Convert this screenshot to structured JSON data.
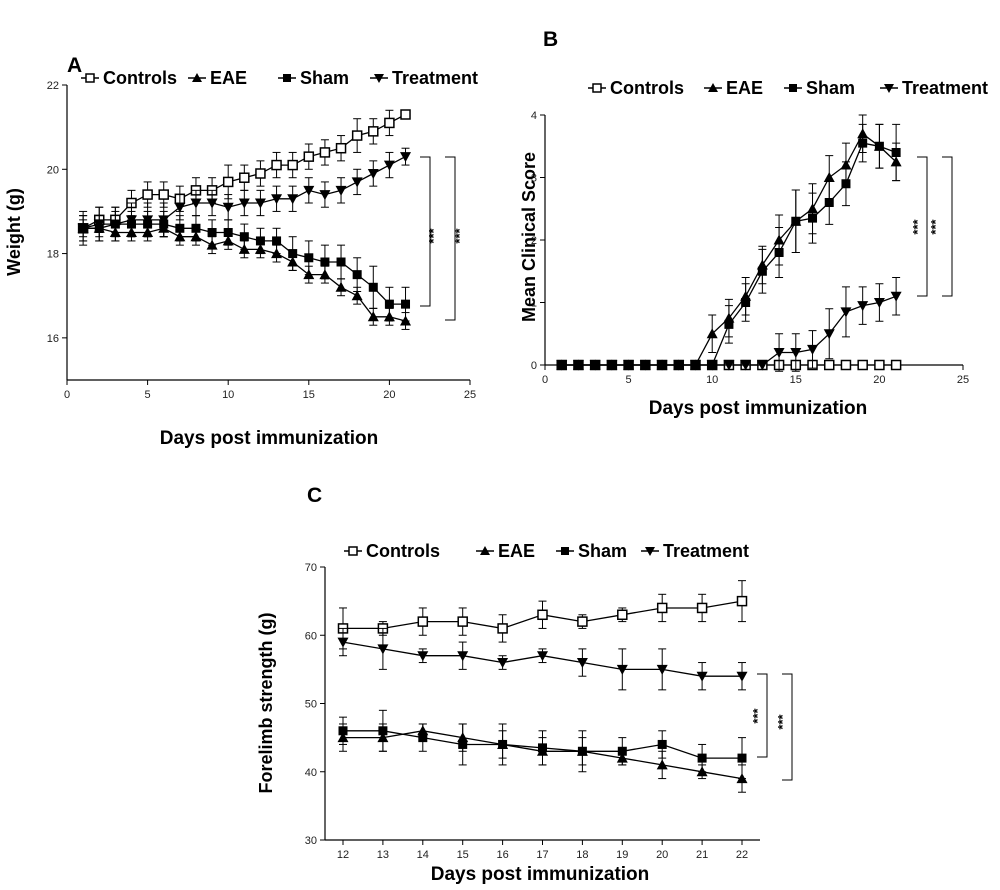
{
  "chart_data": [
    {
      "panel": "A",
      "type": "line",
      "xlabel": "Days post immunization",
      "ylabel": "Weight (g)",
      "xlim": [
        0,
        25
      ],
      "ylim": [
        15,
        22
      ],
      "xticks": [
        "0",
        "5",
        "10",
        "15",
        "20",
        "25"
      ],
      "yticks": [
        "16",
        "18",
        "20",
        "22"
      ],
      "legend_position": "top",
      "grid": false,
      "significance_label": "***",
      "x": [
        1,
        2,
        3,
        4,
        5,
        6,
        7,
        8,
        9,
        10,
        11,
        12,
        13,
        14,
        15,
        16,
        17,
        18,
        19,
        20,
        21
      ],
      "series": [
        {
          "name": "Controls",
          "marker": "open-square",
          "values": [
            18.6,
            18.8,
            18.8,
            19.2,
            19.4,
            19.4,
            19.3,
            19.5,
            19.5,
            19.7,
            19.8,
            19.9,
            20.1,
            20.1,
            20.3,
            20.4,
            20.5,
            20.8,
            20.9,
            21.1,
            21.3
          ],
          "errors": [
            0.3,
            0.3,
            0.3,
            0.3,
            0.3,
            0.3,
            0.3,
            0.3,
            0.3,
            0.4,
            0.3,
            0.3,
            0.3,
            0.3,
            0.3,
            0.3,
            0.3,
            0.4,
            0.3,
            0.3,
            0.1
          ]
        },
        {
          "name": "EAE",
          "marker": "triangle-up",
          "values": [
            18.6,
            18.6,
            18.5,
            18.5,
            18.5,
            18.6,
            18.4,
            18.4,
            18.2,
            18.3,
            18.1,
            18.1,
            18.0,
            17.8,
            17.5,
            17.5,
            17.2,
            17.0,
            16.5,
            16.5,
            16.4
          ],
          "errors": [
            0.2,
            0.2,
            0.2,
            0.2,
            0.2,
            0.2,
            0.2,
            0.2,
            0.2,
            0.2,
            0.2,
            0.2,
            0.2,
            0.2,
            0.2,
            0.2,
            0.2,
            0.2,
            0.2,
            0.2,
            0.2
          ]
        },
        {
          "name": "Sham",
          "marker": "filled-square",
          "values": [
            18.6,
            18.6,
            18.7,
            18.7,
            18.7,
            18.7,
            18.6,
            18.6,
            18.5,
            18.5,
            18.4,
            18.3,
            18.3,
            18.0,
            17.9,
            17.8,
            17.8,
            17.5,
            17.2,
            16.8,
            16.8
          ],
          "errors": [
            0.3,
            0.3,
            0.3,
            0.3,
            0.3,
            0.3,
            0.3,
            0.3,
            0.3,
            0.3,
            0.3,
            0.3,
            0.3,
            0.4,
            0.4,
            0.4,
            0.4,
            0.4,
            0.5,
            0.4,
            0.4
          ]
        },
        {
          "name": "Treatment",
          "marker": "triangle-down",
          "values": [
            18.6,
            18.7,
            18.7,
            18.8,
            18.8,
            18.8,
            19.1,
            19.2,
            19.2,
            19.1,
            19.2,
            19.2,
            19.3,
            19.3,
            19.5,
            19.4,
            19.5,
            19.7,
            19.9,
            20.1,
            20.3
          ],
          "errors": [
            0.4,
            0.4,
            0.4,
            0.4,
            0.4,
            0.4,
            0.3,
            0.3,
            0.3,
            0.3,
            0.3,
            0.3,
            0.3,
            0.3,
            0.3,
            0.3,
            0.3,
            0.3,
            0.3,
            0.3,
            0.2
          ]
        }
      ]
    },
    {
      "panel": "B",
      "type": "line",
      "xlabel": "Days post immunization",
      "ylabel": "Mean Clinical Score",
      "xlim": [
        0,
        25
      ],
      "ylim": [
        0,
        4
      ],
      "xticks": [
        "0",
        "5",
        "10",
        "15",
        "20",
        "25"
      ],
      "yticks": [
        "0",
        "1",
        "2",
        "3",
        "4"
      ],
      "legend_position": "top",
      "grid": false,
      "significance_label": "***",
      "x": [
        1,
        2,
        3,
        4,
        5,
        6,
        7,
        8,
        9,
        10,
        11,
        12,
        13,
        14,
        15,
        16,
        17,
        18,
        19,
        20,
        21
      ],
      "series": [
        {
          "name": "Controls",
          "marker": "open-square",
          "values": [
            0,
            0,
            0,
            0,
            0,
            0,
            0,
            0,
            0,
            0,
            0,
            0,
            0,
            0,
            0,
            0,
            0,
            0,
            0,
            0,
            0
          ],
          "errors": [
            0,
            0,
            0,
            0,
            0,
            0,
            0,
            0,
            0,
            0,
            0,
            0,
            0,
            0,
            0,
            0,
            0,
            0,
            0,
            0,
            0
          ]
        },
        {
          "name": "EAE",
          "marker": "triangle-up",
          "values": [
            0,
            0,
            0,
            0,
            0,
            0,
            0,
            0,
            0,
            0.5,
            0.75,
            1.1,
            1.6,
            2.0,
            2.3,
            2.5,
            3.0,
            3.2,
            3.7,
            3.5,
            3.25
          ],
          "errors": [
            0,
            0,
            0,
            0,
            0,
            0,
            0,
            0,
            0,
            0.3,
            0.3,
            0.3,
            0.3,
            0.4,
            0.5,
            0.4,
            0.35,
            0.35,
            0.3,
            0.35,
            0.3
          ]
        },
        {
          "name": "Sham",
          "marker": "filled-square",
          "values": [
            0,
            0,
            0,
            0,
            0,
            0,
            0,
            0,
            0,
            0,
            0.65,
            1.0,
            1.5,
            1.8,
            2.3,
            2.35,
            2.6,
            2.9,
            3.55,
            3.5,
            3.4
          ],
          "errors": [
            0,
            0,
            0,
            0,
            0,
            0,
            0,
            0,
            0,
            0,
            0.3,
            0.3,
            0.35,
            0.4,
            0.5,
            0.4,
            0.35,
            0.35,
            0.3,
            0.35,
            0.45
          ]
        },
        {
          "name": "Treatment",
          "marker": "triangle-down",
          "values": [
            0,
            0,
            0,
            0,
            0,
            0,
            0,
            0,
            0,
            0,
            0,
            0,
            0,
            0.2,
            0.2,
            0.25,
            0.5,
            0.85,
            0.95,
            1.0,
            1.1
          ],
          "errors": [
            0,
            0,
            0,
            0,
            0,
            0,
            0,
            0,
            0,
            0,
            0,
            0,
            0,
            0.3,
            0.3,
            0.3,
            0.4,
            0.4,
            0.3,
            0.3,
            0.3
          ]
        }
      ]
    },
    {
      "panel": "C",
      "type": "line",
      "xlabel": "Days post immunization",
      "ylabel": "Forelimb strength (g)",
      "ylim": [
        30,
        70
      ],
      "categories": [
        "12",
        "13",
        "14",
        "15",
        "16",
        "17",
        "18",
        "19",
        "20",
        "21",
        "22"
      ],
      "yticks": [
        "30",
        "40",
        "50",
        "60",
        "70"
      ],
      "legend_position": "top",
      "grid": false,
      "significance_label": "***",
      "series": [
        {
          "name": "Controls",
          "marker": "open-square",
          "values": [
            61,
            61,
            62,
            62,
            61,
            63,
            62,
            63,
            64,
            64,
            65
          ],
          "errors": [
            3,
            1,
            2,
            2,
            2,
            2,
            1,
            1,
            2,
            2,
            3
          ]
        },
        {
          "name": "EAE",
          "marker": "triangle-up",
          "values": [
            45,
            45,
            46,
            45,
            44,
            43,
            43,
            42,
            41,
            40,
            39
          ],
          "errors": [
            2,
            2,
            1,
            2,
            2,
            2,
            2,
            1,
            2,
            1,
            2
          ]
        },
        {
          "name": "Sham",
          "marker": "filled-square",
          "values": [
            46,
            46,
            45,
            44,
            44,
            43.5,
            43,
            43,
            44,
            42,
            42
          ],
          "errors": [
            2,
            3,
            2,
            3,
            3,
            2.5,
            3,
            2,
            2,
            2,
            3
          ]
        },
        {
          "name": "Treatment",
          "marker": "triangle-down",
          "values": [
            59,
            58,
            57,
            57,
            56,
            57,
            56,
            55,
            55,
            54,
            54
          ],
          "errors": [
            2,
            3,
            1,
            2,
            1,
            1,
            2,
            3,
            3,
            2,
            2
          ]
        }
      ]
    }
  ]
}
